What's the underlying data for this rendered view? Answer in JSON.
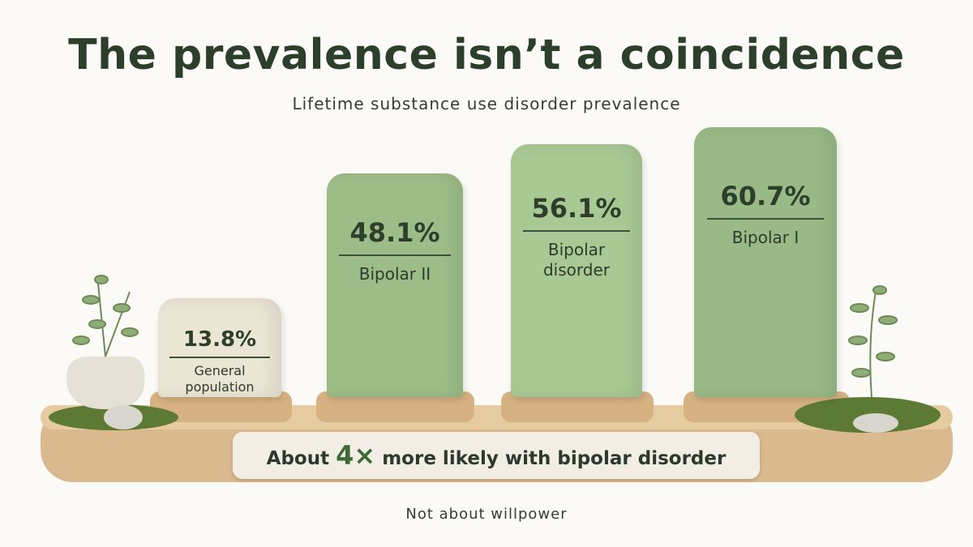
{
  "chart_data": {
    "type": "bar",
    "title": "The prevalence isn’t a coincidence",
    "subtitle": "Lifetime substance use disorder prevalence",
    "categories": [
      "General population",
      "Bipolar II",
      "Bipolar disorder",
      "Bipolar I"
    ],
    "values": [
      13.8,
      48.1,
      56.1,
      60.7
    ],
    "value_labels": [
      "13.8%",
      "48.1%",
      "56.1%",
      "60.7%"
    ],
    "colors": [
      "#ebe5d6",
      "#9dbd88",
      "#a9c994",
      "#99ba86"
    ],
    "annotation": {
      "prefix": "About",
      "emphasis": "4×",
      "suffix": "more likely with bipolar disorder"
    },
    "footer": "Not about willpower"
  }
}
